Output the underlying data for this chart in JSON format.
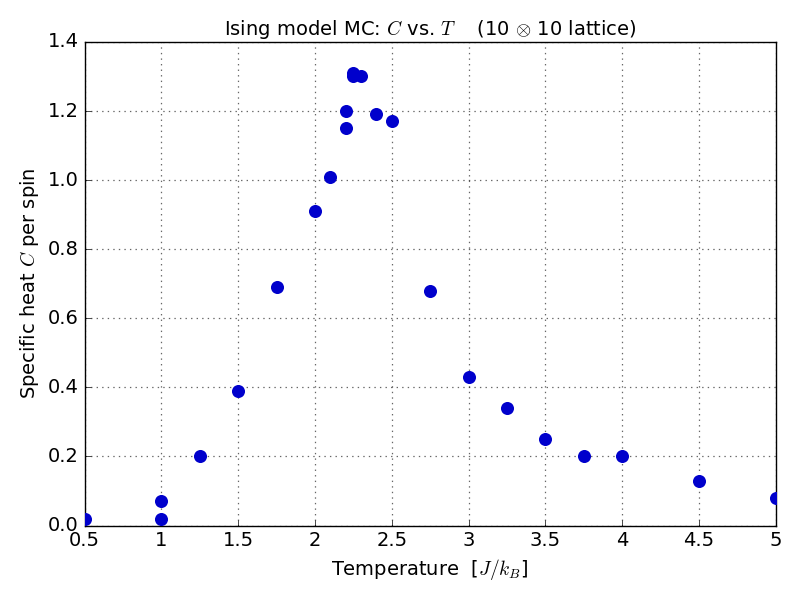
{
  "title_parts": [
    "Ising model MC: ",
    "C",
    " vs. ",
    "T",
    "    (10 ",
    "\\otimes",
    "10 lattice)"
  ],
  "xlabel": "Temperature  [$J/k_B$]",
  "ylabel": "Specific heat $C$ per spin",
  "xlim": [
    0.5,
    5.0
  ],
  "ylim": [
    0.0,
    1.4
  ],
  "xticks": [
    0.5,
    1.0,
    1.5,
    2.0,
    2.5,
    3.0,
    3.5,
    4.0,
    4.5,
    5.0
  ],
  "yticks": [
    0.0,
    0.2,
    0.4,
    0.6,
    0.8,
    1.0,
    1.2,
    1.4
  ],
  "x": [
    0.5,
    1.0,
    1.0,
    1.25,
    1.5,
    1.75,
    2.0,
    2.1,
    2.2,
    2.2,
    2.25,
    2.25,
    2.3,
    2.4,
    2.5,
    2.75,
    3.0,
    3.25,
    3.5,
    3.75,
    4.0,
    4.5,
    5.0
  ],
  "y": [
    0.02,
    0.02,
    0.07,
    0.2,
    0.39,
    0.69,
    0.91,
    1.01,
    1.15,
    1.2,
    1.3,
    1.31,
    1.3,
    1.19,
    1.17,
    0.68,
    0.43,
    0.34,
    0.25,
    0.2,
    0.2,
    0.13,
    0.08
  ],
  "color": "#0000cc",
  "markersize": 7,
  "bg_color": "#ffffff",
  "title_fontsize": 14,
  "label_fontsize": 14,
  "tick_fontsize": 14,
  "figwidth": 8.0,
  "figheight": 6.0,
  "dpi": 100
}
